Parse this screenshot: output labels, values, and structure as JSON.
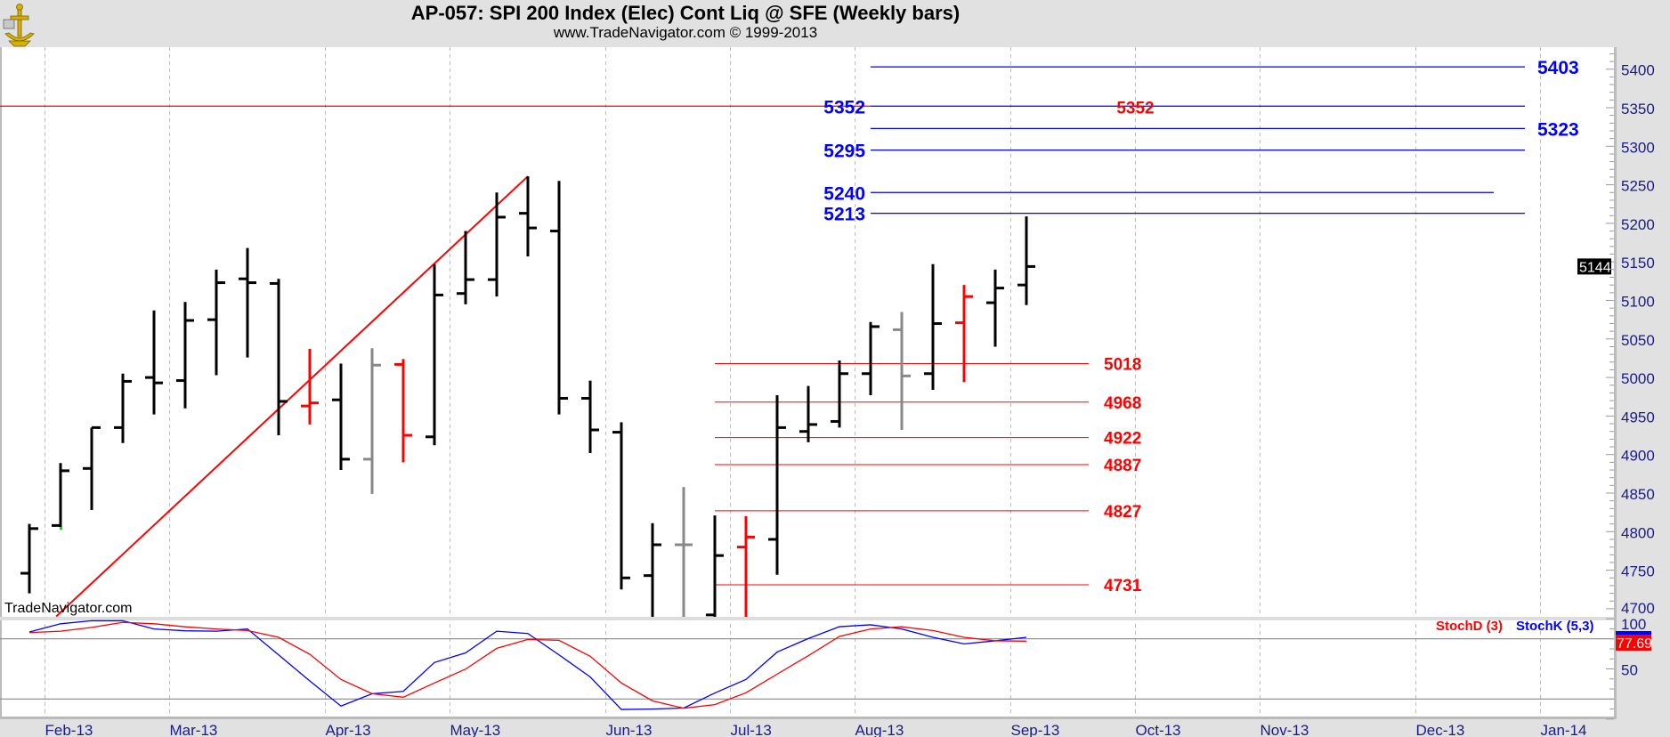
{
  "header": {
    "title": "AP-057:  SPI 200 Index (Elec) Cont Liq @ SFE  (Weekly bars)",
    "subtitle": "www.TradeNavigator.com © 1999-2013",
    "logo_icon": "sextant-anchor-logo-icon"
  },
  "watermark": "TradeNavigator.com",
  "chart_data": [
    {
      "type": "ohlc-bar",
      "title": "AP-057:  SPI 200 Index (Elec) Cont Liq @ SFE  (Weekly bars)",
      "ylim": [
        4689,
        5430
      ],
      "yticks": [
        5400,
        5350,
        5300,
        5250,
        5200,
        5150,
        5100,
        5050,
        5000,
        4950,
        4900,
        4850,
        4800,
        4750,
        4700
      ],
      "grid": "vertical dashed at month starts",
      "last_price": "5144",
      "colors": {
        "black": "#000000",
        "red": "#ff0000",
        "gray": "#888888",
        "blue_level": "#0000ff",
        "red_level": "#ff0000",
        "axis_text": "#1a1a8c"
      },
      "bars": [
        {
          "o": 4746,
          "h": 4810,
          "l": 4720,
          "c": 4804,
          "color": "black"
        },
        {
          "o": 4808,
          "h": 4889,
          "l": 4806,
          "c": 4879,
          "color": "black",
          "marker": "green"
        },
        {
          "o": 4882,
          "h": 4935,
          "l": 4828,
          "c": 4935,
          "color": "black"
        },
        {
          "o": 4935,
          "h": 5005,
          "l": 4915,
          "c": 4995,
          "color": "black"
        },
        {
          "o": 5000,
          "h": 5087,
          "l": 4952,
          "c": 4993,
          "color": "black"
        },
        {
          "o": 4996,
          "h": 5098,
          "l": 4960,
          "c": 5074,
          "color": "black"
        },
        {
          "o": 5075,
          "h": 5140,
          "l": 5003,
          "c": 5123,
          "color": "black"
        },
        {
          "o": 5128,
          "h": 5168,
          "l": 5026,
          "c": 5123,
          "color": "black"
        },
        {
          "o": 5122,
          "h": 5128,
          "l": 4925,
          "c": 4969,
          "color": "black"
        },
        {
          "o": 4963,
          "h": 5037,
          "l": 4939,
          "c": 4967,
          "color": "red"
        },
        {
          "o": 4971,
          "h": 5018,
          "l": 4880,
          "c": 4894,
          "color": "black"
        },
        {
          "o": 4894,
          "h": 5038,
          "l": 4849,
          "c": 5016,
          "color": "gray"
        },
        {
          "o": 5017,
          "h": 5024,
          "l": 4890,
          "c": 4925,
          "color": "red"
        },
        {
          "o": 4923,
          "h": 5147,
          "l": 4912,
          "c": 5107,
          "color": "black"
        },
        {
          "o": 5109,
          "h": 5190,
          "l": 5095,
          "c": 5127,
          "color": "black"
        },
        {
          "o": 5127,
          "h": 5240,
          "l": 5105,
          "c": 5208,
          "color": "black"
        },
        {
          "o": 5213,
          "h": 5261,
          "l": 5157,
          "c": 5194,
          "color": "black"
        },
        {
          "o": 5190,
          "h": 5255,
          "l": 4952,
          "c": 4973,
          "color": "black"
        },
        {
          "o": 4973,
          "h": 4996,
          "l": 4902,
          "c": 4932,
          "color": "black"
        },
        {
          "o": 4929,
          "h": 4942,
          "l": 4725,
          "c": 4740,
          "color": "black"
        },
        {
          "o": 4743,
          "h": 4811,
          "l": 4689,
          "c": 4783,
          "color": "black"
        },
        {
          "o": 4783,
          "h": 4858,
          "l": 4689,
          "c": 4783,
          "color": "gray"
        },
        {
          "o": 4692,
          "h": 4821,
          "l": 4689,
          "c": 4769,
          "color": "black"
        },
        {
          "o": 4780,
          "h": 4820,
          "l": 4689,
          "c": 4793,
          "color": "red"
        },
        {
          "o": 4790,
          "h": 4977,
          "l": 4744,
          "c": 4935,
          "color": "black"
        },
        {
          "o": 4930,
          "h": 4989,
          "l": 4916,
          "c": 4939,
          "color": "black"
        },
        {
          "o": 4943,
          "h": 5022,
          "l": 4935,
          "c": 5005,
          "color": "black"
        },
        {
          "o": 5005,
          "h": 5072,
          "l": 4977,
          "c": 5066,
          "color": "black"
        },
        {
          "o": 5062,
          "h": 5085,
          "l": 4932,
          "c": 5002,
          "color": "gray"
        },
        {
          "o": 5005,
          "h": 5147,
          "l": 4984,
          "c": 5070,
          "color": "black"
        },
        {
          "o": 5071,
          "h": 5120,
          "l": 4994,
          "c": 5105,
          "color": "red"
        },
        {
          "o": 5097,
          "h": 5140,
          "l": 5040,
          "c": 5116,
          "color": "black"
        },
        {
          "o": 5120,
          "h": 5209,
          "l": 5094,
          "c": 5144,
          "color": "black"
        }
      ],
      "trendline": {
        "from": {
          "bar": 0.86,
          "price": 4690
        },
        "to": {
          "bar": 16,
          "price": 5261
        },
        "color": "red"
      },
      "red_resistance": {
        "price": 5352,
        "from_bar": -1,
        "to_bar": 27
      },
      "blue_levels": [
        {
          "price": 5403,
          "label": "5403",
          "label_side": "right",
          "from_bar": 27,
          "to_bar": 48
        },
        {
          "price": 5352,
          "label": "5352",
          "label_side": "left",
          "from_bar": 27,
          "to_bar": 48
        },
        {
          "price": 5323,
          "label": "5323",
          "label_side": "right",
          "from_bar": 27,
          "to_bar": 48
        },
        {
          "price": 5295,
          "label": "5295",
          "label_side": "left",
          "from_bar": 27,
          "to_bar": 48
        },
        {
          "price": 5240,
          "label": "5240",
          "label_side": "left",
          "from_bar": 27,
          "to_bar": 47
        },
        {
          "price": 5213,
          "label": "5213",
          "label_side": "left",
          "from_bar": 27,
          "to_bar": 48
        }
      ],
      "mid_label": {
        "text": "5352",
        "price": 5352,
        "bar": 35.5,
        "color": "red"
      },
      "red_levels": [
        {
          "price": 5018,
          "label": "5018"
        },
        {
          "price": 4968,
          "label": "4968"
        },
        {
          "price": 4922,
          "label": "4922"
        },
        {
          "price": 4887,
          "label": "4887"
        },
        {
          "price": 4827,
          "label": "4827"
        },
        {
          "price": 4731,
          "label": "4731"
        }
      ],
      "red_levels_range": {
        "from_bar": 22,
        "to_bar": 34
      },
      "xaxis_months": [
        {
          "label": "Feb-13",
          "bar": 0.5
        },
        {
          "label": "Mar-13",
          "bar": 4.5
        },
        {
          "label": "Apr-13",
          "bar": 9.5
        },
        {
          "label": "May-13",
          "bar": 13.5
        },
        {
          "label": "Jun-13",
          "bar": 18.5
        },
        {
          "label": "Jul-13",
          "bar": 22.5
        },
        {
          "label": "Aug-13",
          "bar": 26.5
        },
        {
          "label": "Sep-13",
          "bar": 31.5
        },
        {
          "label": "Oct-13",
          "bar": 35.5
        },
        {
          "label": "Nov-13",
          "bar": 39.5
        },
        {
          "label": "Dec-13",
          "bar": 44.5
        },
        {
          "label": "Jan-14",
          "bar": 48.5
        }
      ]
    },
    {
      "type": "line",
      "title": "Stochastic",
      "ylim": [
        0,
        100
      ],
      "yticks": [
        100,
        50
      ],
      "reference_lines": [
        80,
        20
      ],
      "series": [
        {
          "name": "StochD (3)",
          "color": "#ff0000",
          "last": "77.69",
          "values": [
            86.2,
            87.6,
            91.4,
            96.4,
            95,
            92,
            89.8,
            88.3,
            81.5,
            64.6,
            39.5,
            25.3,
            21.8,
            36,
            49.8,
            70.5,
            79.4,
            78.5,
            62.6,
            36,
            18.2,
            10.8,
            14.4,
            26.2,
            44.8,
            63.2,
            82.4,
            89.8,
            92,
            88.3,
            81.5,
            78,
            77.7
          ]
        },
        {
          "name": "StochK (5,3)",
          "color": "#0000ff",
          "values": [
            86.8,
            95,
            98,
            98,
            89.8,
            88,
            87.6,
            89.8,
            64,
            38,
            13,
            25.3,
            27.6,
            56.4,
            66,
            87.6,
            85.3,
            64,
            42,
            9.6,
            10,
            11,
            26,
            39.5,
            66.8,
            80.3,
            92.1,
            94,
            89.8,
            81.5,
            75,
            78,
            81.5
          ]
        }
      ]
    }
  ]
}
